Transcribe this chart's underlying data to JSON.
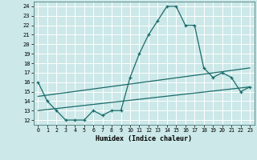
{
  "xlabel": "Humidex (Indice chaleur)",
  "bg_color": "#cce8e8",
  "grid_color": "#ffffff",
  "line_color": "#1a6b6b",
  "xlim": [
    -0.5,
    23.5
  ],
  "ylim": [
    11.5,
    24.5
  ],
  "yticks": [
    12,
    13,
    14,
    15,
    16,
    17,
    18,
    19,
    20,
    21,
    22,
    23,
    24
  ],
  "xticks": [
    0,
    1,
    2,
    3,
    4,
    5,
    6,
    7,
    8,
    9,
    10,
    11,
    12,
    13,
    14,
    15,
    16,
    17,
    18,
    19,
    20,
    21,
    22,
    23
  ],
  "main_line_x": [
    0,
    1,
    2,
    3,
    4,
    5,
    6,
    7,
    8,
    9,
    10,
    11,
    12,
    13,
    14,
    15,
    16,
    17,
    18,
    19,
    20,
    21,
    22,
    23
  ],
  "main_line_y": [
    16.0,
    14.0,
    13.0,
    12.0,
    12.0,
    12.0,
    13.0,
    12.5,
    13.0,
    13.0,
    16.5,
    19.0,
    21.0,
    22.5,
    24.0,
    24.0,
    22.0,
    22.0,
    17.5,
    16.5,
    17.0,
    16.5,
    15.0,
    15.5
  ],
  "upper_line_x": [
    0,
    23
  ],
  "upper_line_y": [
    14.5,
    17.5
  ],
  "lower_line_x": [
    0,
    23
  ],
  "lower_line_y": [
    13.0,
    15.5
  ]
}
